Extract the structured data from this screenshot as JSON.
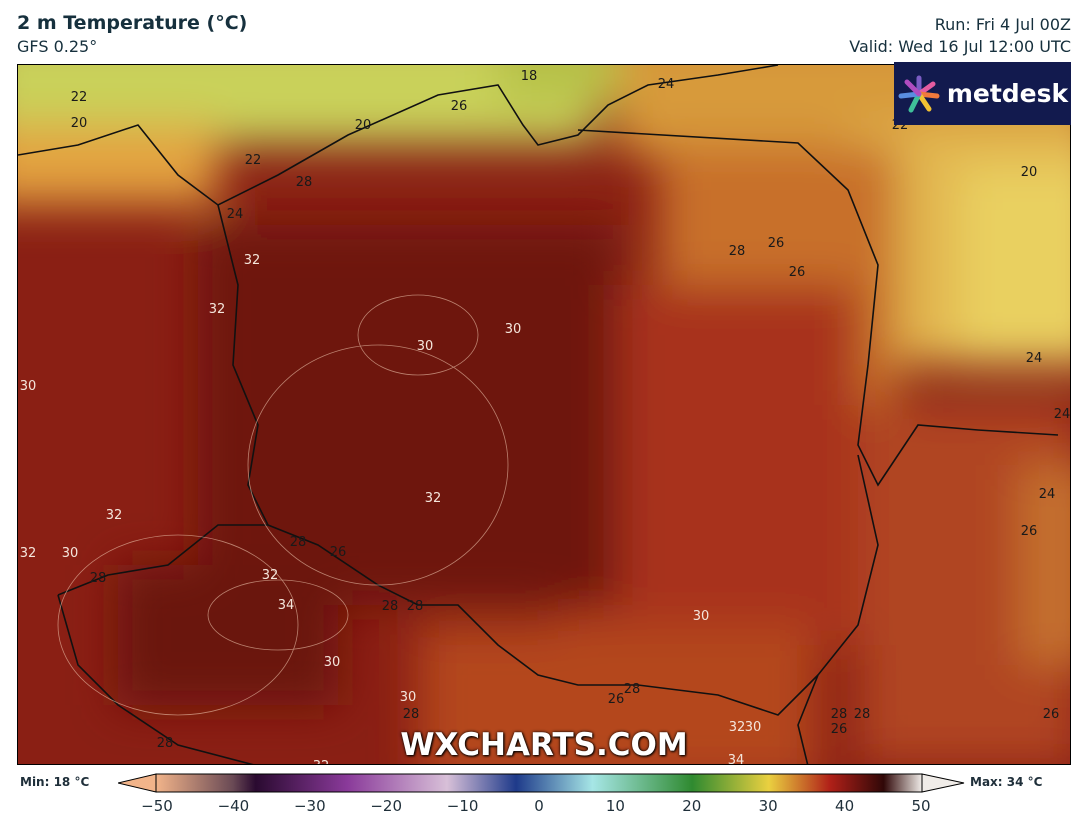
{
  "header": {
    "title": "2 m Temperature (°C)",
    "model": "GFS 0.25°",
    "run": "Run: Fri 4 Jul 00Z",
    "valid": "Valid: Wed 16 Jul 12:00 UTC"
  },
  "logo": {
    "text": "metdesk",
    "background": "#121a4e"
  },
  "watermark": "WXCHARTS.COM",
  "legend": {
    "min": "Min: 18 °C",
    "max": "Max: 34 °C",
    "ticks": [
      "−50",
      "−40",
      "−30",
      "−20",
      "−10",
      "0",
      "10",
      "20",
      "30",
      "40",
      "50"
    ]
  },
  "contour_labels": [
    "18",
    "22",
    "20",
    "26",
    "24",
    "20",
    "22",
    "22",
    "20",
    "28",
    "24",
    "32",
    "32",
    "30",
    "30",
    "28",
    "26",
    "26",
    "24",
    "24",
    "30",
    "32",
    "32",
    "30",
    "24",
    "26",
    "28",
    "26",
    "32",
    "28",
    "34",
    "28",
    "28",
    "30",
    "30",
    "32",
    "30",
    "28",
    "26",
    "28",
    "28",
    "32",
    "30",
    "26",
    "28",
    "26",
    "28",
    "34",
    "32"
  ]
}
